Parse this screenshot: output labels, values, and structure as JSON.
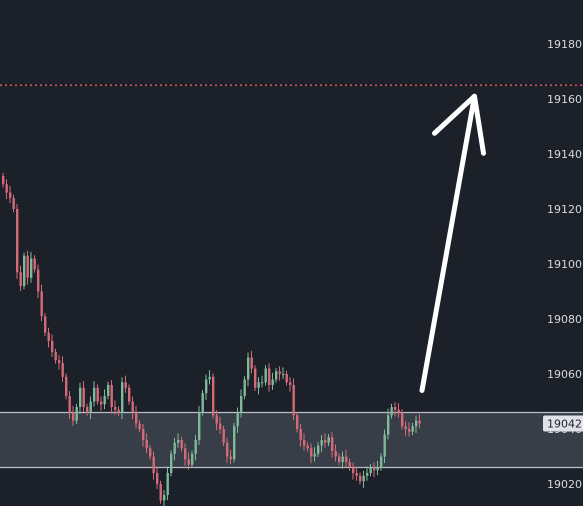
{
  "chart_data": {
    "type": "candlestick",
    "title": "",
    "xlabel": "",
    "ylabel": "",
    "ylim": [
      19012,
      19196
    ],
    "y_ticks": [
      19020,
      19040,
      19060,
      19080,
      19100,
      19120,
      19140,
      19160,
      19180
    ],
    "y_tick_labels": [
      "19020",
      "19040",
      "19060",
      "19080",
      "19100",
      "19120",
      "19140",
      "19160",
      "19180"
    ],
    "grid": false,
    "current_price": 19042,
    "current_price_label": "19042",
    "target_line": {
      "value": 19165,
      "style": "dotted",
      "color": "#e0535a"
    },
    "range_box": {
      "y_low": 19026,
      "y_high": 19046,
      "fill": "#3c434c",
      "border": "#b9bfc7"
    },
    "arrow": {
      "from": {
        "index": 120,
        "value": 19054
      },
      "to": {
        "index": 135,
        "value": 19161
      },
      "color": "#ffffff"
    },
    "up_color": "#7fb89a",
    "down_color": "#d46a78",
    "closes": [
      19129,
      19126,
      19124,
      19120,
      19097,
      19092,
      19103,
      19095,
      19102,
      19098,
      19090,
      19081,
      19075,
      19072,
      19068,
      19065,
      19064,
      19059,
      19052,
      19046,
      19043,
      19048,
      19055,
      19048,
      19046,
      19050,
      19055,
      19050,
      19049,
      19052,
      19056,
      19048,
      19047,
      19046,
      19057,
      19055,
      19050,
      19046,
      19042,
      19040,
      19036,
      19033,
      19030,
      19024,
      19020,
      19014,
      19016,
      19024,
      19031,
      19035,
      19036,
      19033,
      19029,
      19027,
      19031,
      19036,
      19046,
      19053,
      19058,
      19059,
      19045,
      19042,
      19040,
      19035,
      19030,
      19029,
      19041,
      19046,
      19052,
      19058,
      19066,
      19062,
      19055,
      19057,
      19057,
      19062,
      19056,
      19058,
      19061,
      19060,
      19060,
      19057,
      19056,
      19045,
      19040,
      19036,
      19034,
      19033,
      19030,
      19031,
      19034,
      19036,
      19035,
      19037,
      19032,
      19030,
      19028,
      19030,
      19028,
      19026,
      19024,
      19023,
      19021,
      19023,
      19024,
      19026,
      19025,
      19026,
      19030,
      19038,
      19045,
      19048,
      19047,
      19046,
      19041,
      19040,
      19039,
      19041,
      19043,
      19042
    ]
  }
}
